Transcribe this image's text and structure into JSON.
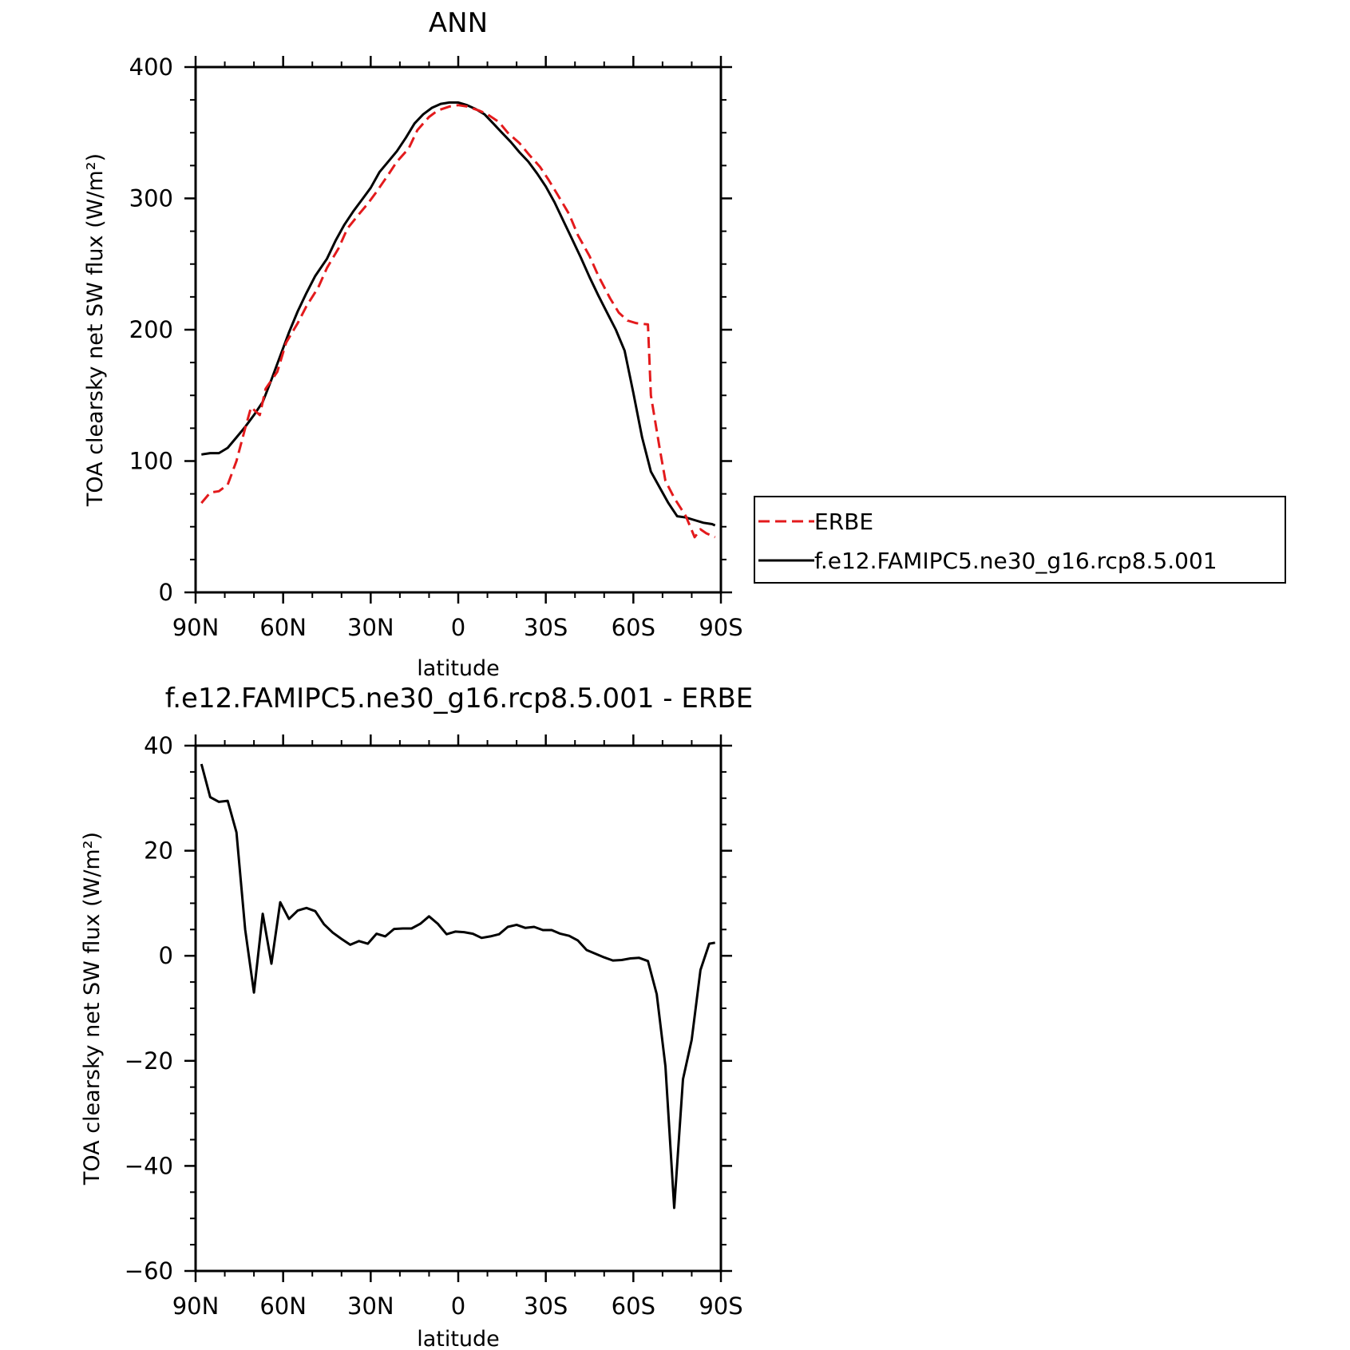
{
  "chart_data": [
    {
      "type": "line",
      "title": "ANN",
      "xlabel": "latitude",
      "ylabel": "TOA clearsky net SW flux (W/m²)",
      "xlim": [
        90,
        -90
      ],
      "ylim": [
        0,
        400
      ],
      "x_ticks": [
        90,
        60,
        30,
        0,
        -30,
        -60,
        -90
      ],
      "x_tick_labels": [
        "90N",
        "60N",
        "30N",
        "0",
        "30S",
        "60S",
        "90S"
      ],
      "y_ticks": [
        0,
        100,
        200,
        300,
        400
      ],
      "y_tick_labels": [
        "0",
        "100",
        "200",
        "300",
        "400"
      ],
      "legend_position": "right",
      "series": [
        {
          "name": "ERBE",
          "color": "#e31a1c",
          "dash": "dashed",
          "x": [
            88,
            85,
            82,
            79,
            76,
            73,
            71,
            68,
            66,
            62,
            59,
            55,
            52,
            48,
            45,
            41,
            38,
            34,
            31,
            28,
            24,
            21,
            17,
            14,
            10,
            7,
            3,
            0,
            -3,
            -7,
            -10,
            -14,
            -17,
            -21,
            -24,
            -28,
            -31,
            -34,
            -38,
            -41,
            -45,
            -48,
            -52,
            -55,
            -58,
            -61,
            -65,
            -66,
            -69,
            -71,
            -74,
            -78,
            -81,
            -83,
            -85,
            -88
          ],
          "values": [
            68,
            76,
            77,
            82,
            100,
            125,
            141,
            135,
            155,
            168,
            190,
            205,
            218,
            232,
            247,
            262,
            277,
            288,
            296,
            305,
            318,
            328,
            338,
            352,
            362,
            367,
            370,
            371,
            370,
            367,
            364,
            358,
            350,
            342,
            334,
            324,
            314,
            303,
            288,
            272,
            256,
            241,
            224,
            213,
            207,
            205,
            204,
            150,
            110,
            85,
            72,
            58,
            42,
            48,
            45,
            42
          ]
        },
        {
          "name": "f.e12.FAMIPC5.ne30_g16.rcp8.5.001",
          "color": "#000000",
          "dash": "solid",
          "x": [
            88,
            85,
            82,
            79,
            76,
            73,
            70,
            67,
            64,
            61,
            58,
            55,
            52,
            49,
            45,
            42,
            39,
            36,
            33,
            30,
            27,
            24,
            21,
            18,
            15,
            12,
            9,
            6,
            3,
            0,
            -3,
            -6,
            -9,
            -12,
            -15,
            -18,
            -21,
            -24,
            -27,
            -30,
            -33,
            -36,
            -39,
            -42,
            -45,
            -48,
            -51,
            -54,
            -57,
            -60,
            -63,
            -66,
            -69,
            -72,
            -75,
            -78,
            -81,
            -84,
            -87,
            -88
          ],
          "values": [
            105,
            106,
            106,
            110,
            118,
            126,
            135,
            145,
            162,
            180,
            198,
            214,
            228,
            241,
            254,
            268,
            280,
            290,
            299,
            308,
            320,
            328,
            336,
            346,
            357,
            364,
            369,
            372,
            373,
            373,
            371,
            368,
            364,
            357,
            350,
            343,
            335,
            328,
            319,
            309,
            297,
            283,
            269,
            255,
            240,
            226,
            213,
            200,
            184,
            152,
            118,
            92,
            80,
            68,
            58,
            57,
            55,
            53,
            52,
            51
          ]
        }
      ]
    },
    {
      "type": "line",
      "title": "f.e12.FAMIPC5.ne30_g16.rcp8.5.001 - ERBE",
      "xlabel": "latitude",
      "ylabel": "TOA clearsky net SW flux (W/m²)",
      "xlim": [
        90,
        -90
      ],
      "ylim": [
        -60,
        40
      ],
      "x_ticks": [
        90,
        60,
        30,
        0,
        -30,
        -60,
        -90
      ],
      "x_tick_labels": [
        "90N",
        "60N",
        "30N",
        "0",
        "30S",
        "60S",
        "90S"
      ],
      "y_ticks": [
        -60,
        -40,
        -20,
        0,
        20,
        40
      ],
      "y_tick_labels": [
        "−60",
        "−40",
        "−20",
        "0",
        "20",
        "40"
      ],
      "series": [
        {
          "color": "#000000",
          "dash": "solid",
          "x": [
            88,
            85,
            82,
            79,
            76,
            73,
            70,
            67,
            64,
            61,
            58,
            55,
            52,
            49,
            46,
            43,
            40,
            37,
            34,
            31,
            28,
            25,
            22,
            19,
            16,
            13,
            10,
            7,
            4,
            1,
            -2,
            -5,
            -8,
            -11,
            -14,
            -17,
            -20,
            -23,
            -26,
            -29,
            -32,
            -35,
            -38,
            -41,
            -44,
            -47,
            -50,
            -53,
            -56,
            -59,
            -62,
            -65,
            -68,
            -71,
            -74,
            -77,
            -80,
            -83,
            -86,
            -88
          ],
          "values": [
            36.5,
            30.2,
            29.3,
            29.5,
            23.5,
            5,
            -7,
            8,
            -1.5,
            10.2,
            7,
            8.6,
            9.1,
            8.5,
            6,
            4.4,
            3.2,
            2.1,
            2.8,
            2.3,
            4.2,
            3.7,
            5.1,
            5.2,
            5.2,
            6.1,
            7.5,
            6.1,
            4.1,
            4.6,
            4.5,
            4.2,
            3.4,
            3.7,
            4.1,
            5.5,
            5.9,
            5.3,
            5.5,
            4.9,
            4.9,
            4.2,
            3.8,
            2.9,
            1.1,
            0.4,
            -0.3,
            -0.9,
            -0.8,
            -0.5,
            -0.4,
            -1,
            -7.3,
            -21,
            -48,
            -23.5,
            -16,
            -2.7,
            2.3,
            2.5
          ]
        }
      ]
    }
  ]
}
